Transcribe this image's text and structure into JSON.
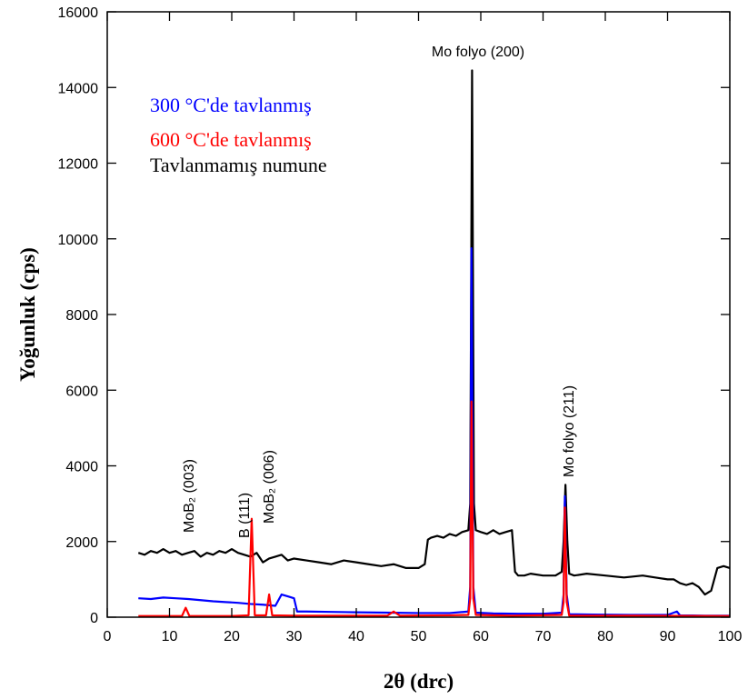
{
  "chart_data": {
    "type": "line",
    "xlabel": "2θ (drc)",
    "ylabel": "Yoğunluk (cps)",
    "xlim": [
      0,
      100
    ],
    "xticks": [
      0,
      10,
      20,
      30,
      40,
      50,
      60,
      70,
      80,
      90,
      100
    ],
    "ylim": [
      0,
      16000
    ],
    "yticks": [
      0,
      2000,
      4000,
      6000,
      8000,
      10000,
      12000,
      14000,
      16000
    ],
    "annotations": [
      "Mo folyo (200)",
      "Mo folyo (211)",
      "B (111)",
      "MoB₂ (003)",
      "MoB₂ (006)"
    ],
    "series": [
      {
        "name": "Tavlanmamış numune",
        "color": "#000000",
        "x": [
          5,
          6,
          7,
          8,
          9,
          10,
          11,
          12,
          13,
          14,
          15,
          16,
          17,
          18,
          19,
          20,
          21,
          22,
          23,
          24,
          25,
          26,
          27,
          28,
          29,
          30,
          32,
          34,
          36,
          38,
          40,
          42,
          44,
          46,
          48,
          50,
          51,
          51.5,
          52,
          53,
          54,
          55,
          56,
          57,
          58,
          58.3,
          58.6,
          58.9,
          59.2,
          60,
          61,
          62,
          63,
          64,
          65,
          65.5,
          66,
          67,
          68,
          70,
          72,
          73,
          73.3,
          73.6,
          73.9,
          74.2,
          75,
          77,
          80,
          83,
          86,
          88,
          90,
          91,
          92,
          93,
          94,
          95,
          96,
          97,
          98,
          99,
          100
        ],
        "values": [
          1700,
          1650,
          1750,
          1700,
          1800,
          1700,
          1750,
          1650,
          1700,
          1750,
          1600,
          1700,
          1650,
          1750,
          1700,
          1800,
          1700,
          1650,
          1600,
          1700,
          1450,
          1550,
          1600,
          1650,
          1500,
          1550,
          1500,
          1450,
          1400,
          1500,
          1450,
          1400,
          1350,
          1400,
          1300,
          1300,
          1400,
          2050,
          2100,
          2150,
          2100,
          2200,
          2150,
          2250,
          2300,
          3000,
          14450,
          3000,
          2300,
          2250,
          2200,
          2300,
          2200,
          2250,
          2300,
          1200,
          1100,
          1100,
          1150,
          1100,
          1100,
          1200,
          2000,
          3500,
          2000,
          1150,
          1100,
          1150,
          1100,
          1050,
          1100,
          1050,
          1000,
          1000,
          900,
          850,
          900,
          800,
          600,
          700,
          1300,
          1350,
          1300
        ]
      },
      {
        "name": "300 °C'de tavlanmış",
        "color": "#0000ff",
        "x": [
          5,
          7,
          9,
          11,
          13,
          15,
          17,
          19,
          21,
          23,
          25,
          27,
          28,
          29,
          30,
          30.5,
          32,
          36,
          40,
          45,
          50,
          55,
          58,
          58.3,
          58.5,
          58.8,
          59.2,
          62,
          66,
          70,
          73,
          73.3,
          73.5,
          73.8,
          74.2,
          78,
          84,
          90,
          91.5,
          92,
          96,
          100
        ],
        "values": [
          500,
          480,
          520,
          500,
          480,
          450,
          420,
          400,
          380,
          350,
          330,
          300,
          600,
          550,
          500,
          150,
          150,
          140,
          130,
          120,
          110,
          110,
          150,
          800,
          9750,
          800,
          120,
          100,
          90,
          90,
          120,
          600,
          3200,
          600,
          80,
          70,
          60,
          60,
          150,
          50,
          40,
          40
        ]
      },
      {
        "name": "600 °C'de tavlanmış",
        "color": "#ff0000",
        "x": [
          5,
          12,
          12.6,
          13.2,
          20,
          22.7,
          23.2,
          23.7,
          25.5,
          26,
          26.5,
          30,
          40,
          45,
          46,
          47,
          55,
          58,
          58.3,
          58.5,
          58.8,
          59.2,
          65,
          73,
          73.3,
          73.5,
          73.8,
          74.2,
          85,
          100
        ],
        "values": [
          30,
          30,
          250,
          30,
          30,
          50,
          2600,
          50,
          50,
          600,
          50,
          40,
          40,
          40,
          150,
          40,
          50,
          60,
          500,
          5700,
          500,
          60,
          40,
          60,
          400,
          2900,
          400,
          40,
          40,
          30
        ]
      }
    ]
  }
}
